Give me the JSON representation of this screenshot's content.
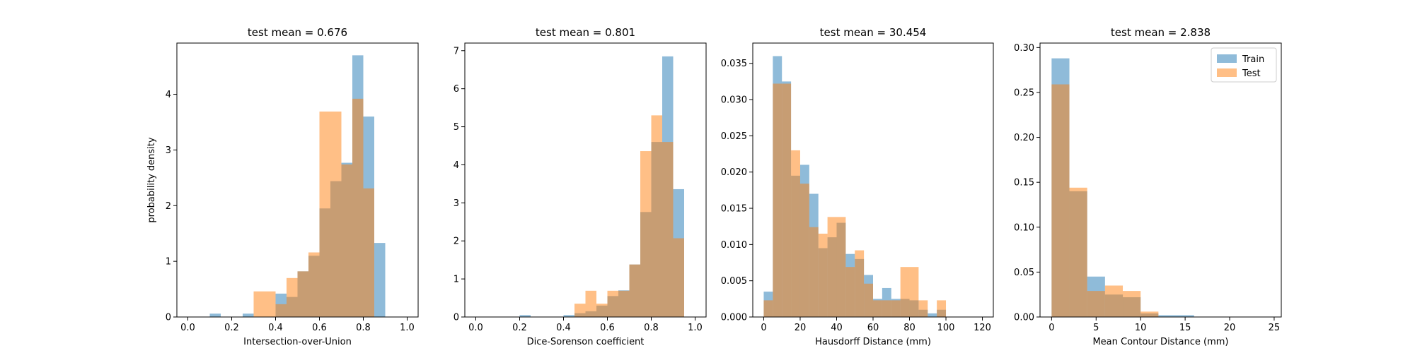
{
  "figure": {
    "colors": {
      "train": "#1f77b4",
      "test": "#ff7f0e",
      "axis": "#000000"
    }
  },
  "legend": {
    "location": "upper-right",
    "panel": 3,
    "entries": [
      {
        "label": "Train",
        "series": "train"
      },
      {
        "label": "Test",
        "series": "test"
      }
    ]
  },
  "chart_data": [
    {
      "type": "histogram",
      "title": "test mean = 0.676",
      "xlabel": "Intersection-over-Union",
      "ylabel": "probability density",
      "xlim": [
        -0.05,
        1.05
      ],
      "ylim": [
        0,
        4.92
      ],
      "xticks": [
        0.0,
        0.2,
        0.4,
        0.6,
        0.8,
        1.0
      ],
      "xtick_labels": [
        "0.0",
        "0.2",
        "0.4",
        "0.6",
        "0.8",
        "1.0"
      ],
      "yticks": [
        0,
        1,
        2,
        3,
        4
      ],
      "ytick_labels": [
        "0",
        "1",
        "2",
        "3",
        "4"
      ],
      "bin_width": 0.05,
      "series": [
        {
          "name": "Train",
          "key": "train",
          "alpha": 0.5,
          "bins_start": [
            0.1,
            0.25,
            0.4,
            0.45,
            0.5,
            0.55,
            0.6,
            0.65,
            0.7,
            0.75,
            0.8,
            0.85
          ],
          "values": [
            0.06,
            0.06,
            0.42,
            0.36,
            0.82,
            1.1,
            1.95,
            2.44,
            2.77,
            4.7,
            3.6,
            1.33
          ]
        },
        {
          "name": "Test",
          "key": "test",
          "alpha": 0.5,
          "bins_start": [
            0.3,
            0.35,
            0.4,
            0.45,
            0.5,
            0.55,
            0.6,
            0.65,
            0.7,
            0.75,
            0.8
          ],
          "values": [
            0.46,
            0.46,
            0.23,
            0.7,
            0.82,
            1.16,
            3.69,
            3.69,
            2.74,
            3.92,
            2.31
          ]
        }
      ]
    },
    {
      "type": "histogram",
      "title": "test mean = 0.801",
      "xlabel": "Dice-Sorenson coefficient",
      "ylabel": "",
      "xlim": [
        -0.05,
        1.05
      ],
      "ylim": [
        0,
        7.2
      ],
      "xticks": [
        0.0,
        0.2,
        0.4,
        0.6,
        0.8,
        1.0
      ],
      "xtick_labels": [
        "0.0",
        "0.2",
        "0.4",
        "0.6",
        "0.8",
        "1.0"
      ],
      "yticks": [
        0,
        1,
        2,
        3,
        4,
        5,
        6,
        7
      ],
      "ytick_labels": [
        "0",
        "1",
        "2",
        "3",
        "4",
        "5",
        "6",
        "7"
      ],
      "bin_width": 0.05,
      "series": [
        {
          "name": "Train",
          "key": "train",
          "alpha": 0.5,
          "bins_start": [
            0.2,
            0.4,
            0.45,
            0.5,
            0.55,
            0.6,
            0.65,
            0.7,
            0.75,
            0.8,
            0.85,
            0.9
          ],
          "values": [
            0.05,
            0.05,
            0.1,
            0.15,
            0.3,
            0.55,
            0.7,
            1.38,
            2.76,
            4.6,
            6.85,
            3.36
          ]
        },
        {
          "name": "Test",
          "key": "test",
          "alpha": 0.5,
          "bins_start": [
            0.45,
            0.5,
            0.55,
            0.6,
            0.65,
            0.7,
            0.75,
            0.8,
            0.85,
            0.9
          ],
          "values": [
            0.35,
            0.69,
            0.35,
            0.69,
            0.69,
            1.38,
            4.36,
            5.3,
            4.6,
            2.07
          ]
        }
      ]
    },
    {
      "type": "histogram",
      "title": "test mean = 30.454",
      "xlabel": "Hausdorff Distance (mm)",
      "ylabel": "",
      "xlim": [
        -6,
        126
      ],
      "ylim": [
        0,
        0.0378
      ],
      "xticks": [
        0,
        20,
        40,
        60,
        80,
        100,
        120
      ],
      "xtick_labels": [
        "0",
        "20",
        "40",
        "60",
        "80",
        "100",
        "120"
      ],
      "yticks": [
        0,
        0.005,
        0.01,
        0.015,
        0.02,
        0.025,
        0.03,
        0.035
      ],
      "ytick_labels": [
        "0.000",
        "0.005",
        "0.010",
        "0.015",
        "0.020",
        "0.025",
        "0.030",
        "0.035"
      ],
      "bin_width": 5,
      "series": [
        {
          "name": "Train",
          "key": "train",
          "alpha": 0.5,
          "bins_start": [
            0,
            5,
            10,
            15,
            20,
            25,
            30,
            35,
            40,
            45,
            50,
            55,
            60,
            65,
            70,
            75,
            80,
            85,
            90,
            95
          ],
          "values": [
            0.0035,
            0.036,
            0.0325,
            0.0195,
            0.021,
            0.017,
            0.0095,
            0.011,
            0.013,
            0.0087,
            0.008,
            0.0058,
            0.0025,
            0.004,
            0.0025,
            0.0025,
            0.0023,
            0.001,
            0.0005,
            0.001
          ]
        },
        {
          "name": "Test",
          "key": "test",
          "alpha": 0.5,
          "bins_start": [
            0,
            5,
            10,
            15,
            20,
            25,
            30,
            35,
            40,
            45,
            50,
            55,
            60,
            65,
            70,
            75,
            80,
            85,
            90,
            95
          ],
          "values": [
            0.0023,
            0.0322,
            0.0322,
            0.023,
            0.0184,
            0.0124,
            0.0115,
            0.0138,
            0.0138,
            0.0069,
            0.0092,
            0.0046,
            0.0023,
            0.0023,
            0.0023,
            0.0069,
            0.0069,
            0.0023,
            0.0,
            0.0023
          ]
        }
      ]
    },
    {
      "type": "histogram",
      "title": "test mean = 2.838",
      "xlabel": "Mean Contour Distance (mm)",
      "ylabel": "",
      "xlim": [
        -1.3,
        25.8
      ],
      "ylim": [
        0,
        0.305
      ],
      "xticks": [
        0,
        5,
        10,
        15,
        20,
        25
      ],
      "xtick_labels": [
        "0",
        "5",
        "10",
        "15",
        "20",
        "25"
      ],
      "yticks": [
        0,
        0.05,
        0.1,
        0.15,
        0.2,
        0.25,
        0.3
      ],
      "ytick_labels": [
        "0.00",
        "0.05",
        "0.10",
        "0.15",
        "0.20",
        "0.25",
        "0.30"
      ],
      "bin_width": 2,
      "series": [
        {
          "name": "Train",
          "key": "train",
          "alpha": 0.5,
          "bins_start": [
            0,
            2,
            4,
            6,
            8,
            10,
            12,
            14
          ],
          "values": [
            0.288,
            0.14,
            0.045,
            0.025,
            0.022,
            0.004,
            0.002,
            0.002
          ]
        },
        {
          "name": "Test",
          "key": "test",
          "alpha": 0.5,
          "bins_start": [
            0,
            2,
            4,
            6,
            8,
            10
          ],
          "values": [
            0.259,
            0.144,
            0.029,
            0.035,
            0.029,
            0.006
          ]
        }
      ]
    }
  ]
}
